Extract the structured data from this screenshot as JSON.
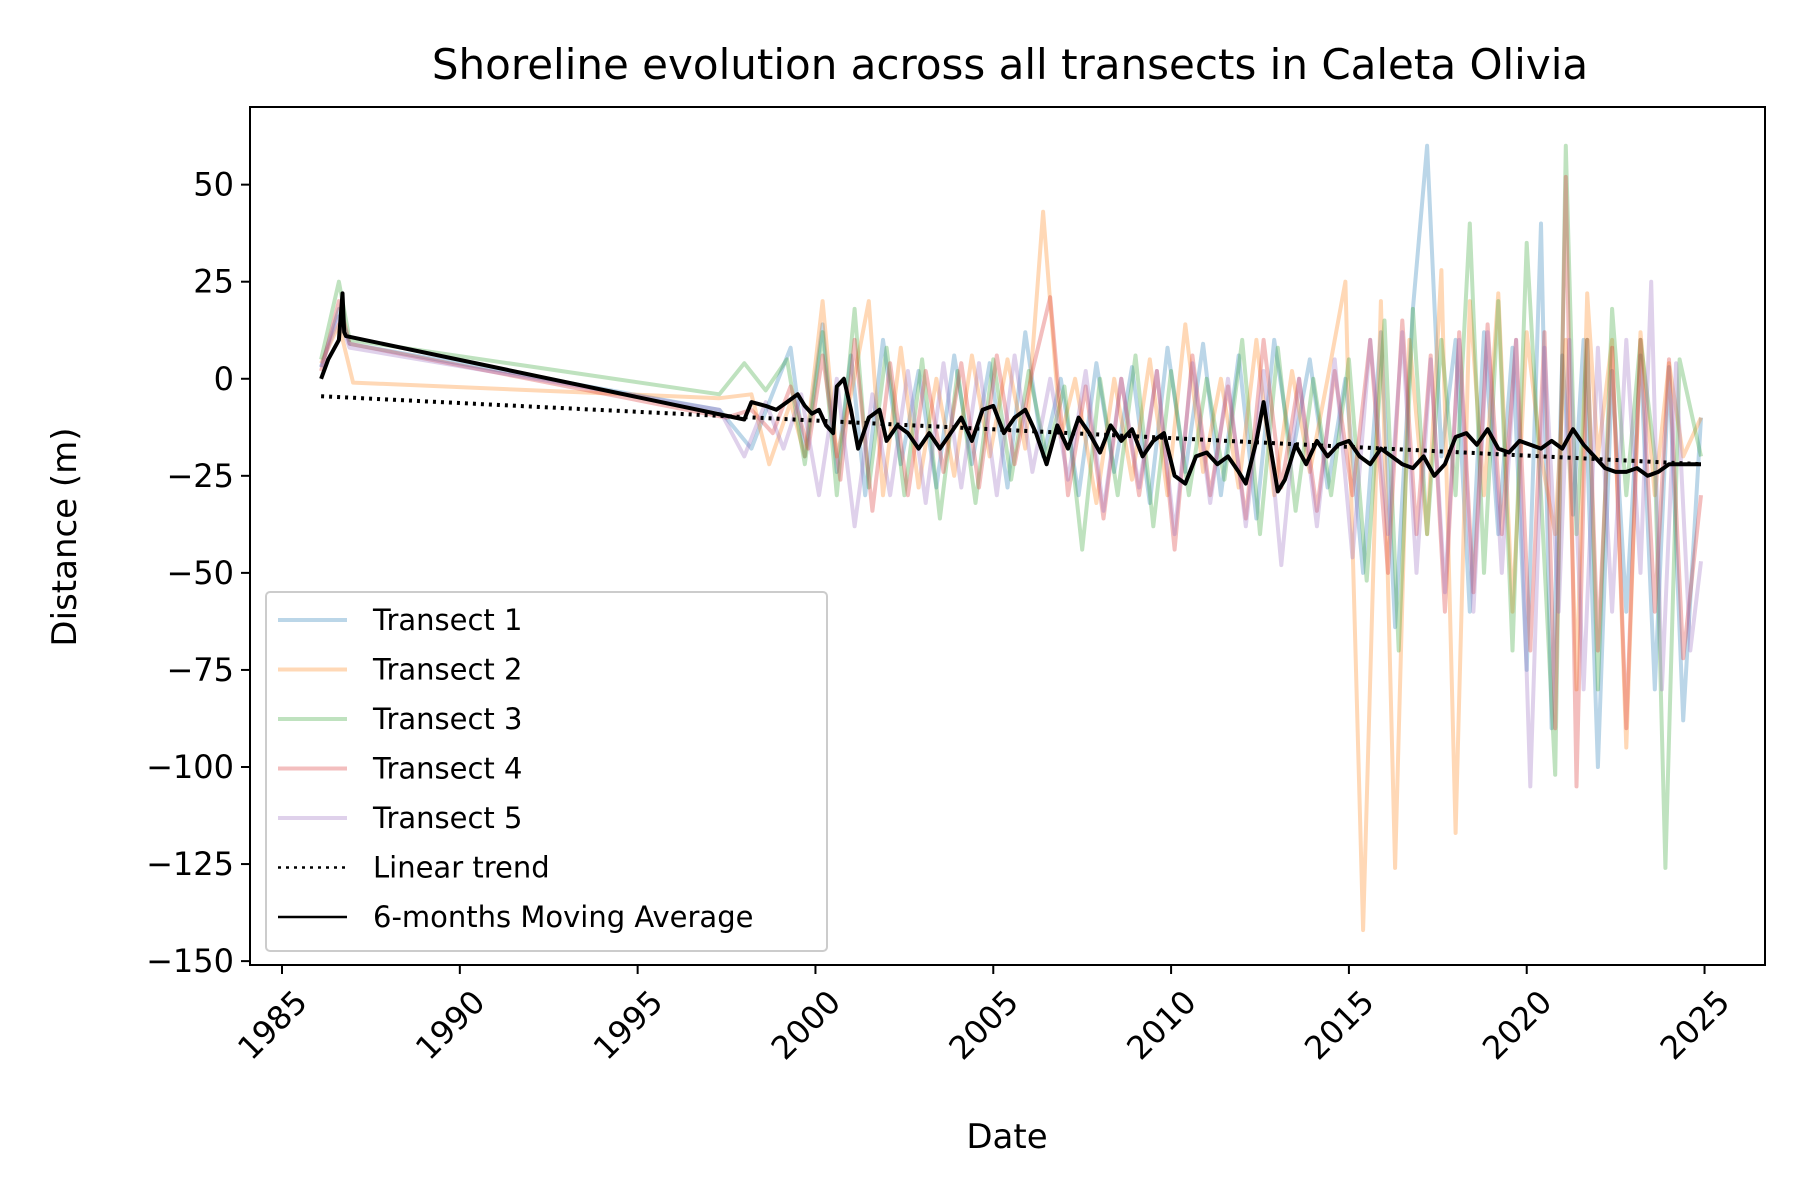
{
  "chart_data": {
    "type": "line",
    "title": "Shoreline evolution across all transects in Caleta Olivia",
    "xlabel": "Date",
    "ylabel": "Distance (m)",
    "xlim": [
      1984.1,
      2026.7
    ],
    "ylim": [
      -151,
      70
    ],
    "x_ticks": [
      1985,
      1990,
      1995,
      2000,
      2005,
      2010,
      2015,
      2020,
      2025
    ],
    "y_ticks": [
      50,
      25,
      0,
      -25,
      -50,
      -75,
      -100,
      -125,
      -150
    ],
    "y_tick_labels": [
      "50",
      "25",
      "0",
      "−25",
      "−50",
      "−75",
      "−100",
      "−125",
      "−150"
    ],
    "grid": false,
    "legend_position": "lower-left",
    "series": [
      {
        "name": "Transect 1",
        "color": "#1f77b4",
        "opacity": 0.3,
        "x": [
          1986.1,
          1986.6,
          1986.9,
          1997.3,
          1998.2,
          1998.7,
          1999.3,
          1999.7,
          2000.2,
          2000.6,
          2001.0,
          2001.4,
          2001.9,
          2002.4,
          2002.9,
          2003.4,
          2003.9,
          2004.4,
          2004.9,
          2005.4,
          2005.9,
          2006.4,
          2006.9,
          2007.4,
          2007.9,
          2008.4,
          2008.9,
          2009.4,
          2009.9,
          2010.4,
          2010.9,
          2011.4,
          2011.9,
          2012.4,
          2012.9,
          2013.4,
          2013.9,
          2014.4,
          2014.9,
          2015.4,
          2015.9,
          2016.3,
          2016.8,
          2017.2,
          2017.6,
          2018.0,
          2018.4,
          2018.8,
          2019.2,
          2019.6,
          2020.0,
          2020.4,
          2020.7,
          2021.0,
          2021.3,
          2021.6,
          2022.0,
          2022.4,
          2022.8,
          2023.2,
          2023.6,
          2024.0,
          2024.4,
          2024.9
        ],
        "y": [
          3,
          18,
          9,
          -8,
          -18,
          -6,
          8,
          -20,
          14,
          -24,
          6,
          -30,
          10,
          -22,
          2,
          -28,
          6,
          -22,
          4,
          -28,
          12,
          -20,
          0,
          -30,
          4,
          -24,
          3,
          -32,
          8,
          -24,
          9,
          -30,
          6,
          -36,
          10,
          -20,
          5,
          -28,
          0,
          -50,
          12,
          -64,
          18,
          60,
          -20,
          10,
          -60,
          12,
          -40,
          8,
          -75,
          40,
          -90,
          6,
          -35,
          10,
          -100,
          2,
          -60,
          6,
          -80,
          3,
          -88,
          -10
        ]
      },
      {
        "name": "Transect 2",
        "color": "#ff7f0e",
        "opacity": 0.3,
        "x": [
          1986.1,
          1986.6,
          1987.0,
          1997.3,
          1998.2,
          1998.7,
          1999.3,
          1999.7,
          2000.2,
          2000.6,
          2001.0,
          2001.5,
          2001.9,
          2002.4,
          2002.9,
          2003.4,
          2003.9,
          2004.4,
          2004.9,
          2005.4,
          2005.9,
          2006.4,
          2006.9,
          2007.3,
          2007.9,
          2008.4,
          2008.9,
          2009.4,
          2009.9,
          2010.4,
          2010.9,
          2011.4,
          2011.9,
          2012.4,
          2012.9,
          2013.4,
          2013.9,
          2014.4,
          2014.9,
          2015.4,
          2015.9,
          2016.3,
          2016.7,
          2017.2,
          2017.6,
          2018.0,
          2018.4,
          2018.8,
          2019.2,
          2019.6,
          2020.0,
          2020.4,
          2020.8,
          2021.1,
          2021.4,
          2021.7,
          2022.0,
          2022.4,
          2022.8,
          2023.2,
          2023.6,
          2024.0,
          2024.4,
          2024.9
        ],
        "y": [
          4,
          14,
          -1,
          -5,
          -4,
          -22,
          -6,
          -20,
          20,
          -20,
          -4,
          20,
          -30,
          8,
          -28,
          0,
          -25,
          6,
          -20,
          5,
          -18,
          43,
          -15,
          0,
          -32,
          0,
          -26,
          5,
          -30,
          14,
          -24,
          0,
          -28,
          10,
          -30,
          2,
          -24,
          0,
          25,
          -142,
          20,
          -126,
          10,
          -40,
          28,
          -117,
          20,
          -30,
          22,
          -60,
          12,
          -20,
          -40,
          10,
          -80,
          22,
          -20,
          10,
          -95,
          12,
          -30,
          4,
          -20,
          -10
        ]
      },
      {
        "name": "Transect 3",
        "color": "#2ca02c",
        "opacity": 0.3,
        "x": [
          1986.1,
          1986.6,
          1986.9,
          1997.3,
          1998.0,
          1998.6,
          1999.2,
          1999.7,
          2000.2,
          2000.6,
          2001.1,
          2001.5,
          2002.0,
          2002.5,
          2003.0,
          2003.5,
          2004.0,
          2004.5,
          2005.0,
          2005.5,
          2006.0,
          2006.5,
          2007.0,
          2007.5,
          2008.0,
          2008.5,
          2009.0,
          2009.5,
          2010.0,
          2010.5,
          2011.0,
          2011.5,
          2012.0,
          2012.5,
          2013.0,
          2013.5,
          2014.0,
          2014.5,
          2015.0,
          2015.5,
          2016.0,
          2016.4,
          2016.8,
          2017.2,
          2017.6,
          2018.0,
          2018.4,
          2018.8,
          2019.2,
          2019.6,
          2020.0,
          2020.4,
          2020.8,
          2021.1,
          2021.4,
          2021.7,
          2022.0,
          2022.4,
          2022.8,
          2023.2,
          2023.6,
          2023.9,
          2024.3,
          2024.9
        ],
        "y": [
          5,
          25,
          10,
          -4,
          4,
          -3,
          5,
          -22,
          12,
          -30,
          18,
          -28,
          8,
          -30,
          5,
          -36,
          2,
          -32,
          5,
          -26,
          2,
          -20,
          -2,
          -44,
          0,
          -30,
          6,
          -38,
          2,
          -30,
          0,
          -26,
          10,
          -40,
          8,
          -34,
          0,
          -30,
          5,
          -52,
          15,
          -70,
          18,
          -40,
          10,
          -30,
          40,
          -50,
          20,
          -70,
          35,
          -30,
          -102,
          60,
          -40,
          10,
          -80,
          18,
          -30,
          10,
          -20,
          -126,
          5,
          -20
        ]
      },
      {
        "name": "Transect 4",
        "color": "#d62728",
        "opacity": 0.3,
        "x": [
          1986.1,
          1986.6,
          1986.9,
          1997.5,
          1998.2,
          1998.8,
          1999.3,
          1999.8,
          2000.2,
          2000.7,
          2001.1,
          2001.6,
          2002.1,
          2002.6,
          2003.1,
          2003.6,
          2004.1,
          2004.6,
          2005.1,
          2005.6,
          2006.1,
          2006.6,
          2007.1,
          2007.6,
          2008.1,
          2008.6,
          2009.1,
          2009.6,
          2010.1,
          2010.6,
          2011.1,
          2011.6,
          2012.1,
          2012.6,
          2013.1,
          2013.6,
          2014.1,
          2014.6,
          2015.1,
          2015.6,
          2016.1,
          2016.5,
          2016.9,
          2017.3,
          2017.7,
          2018.1,
          2018.5,
          2018.9,
          2019.3,
          2019.7,
          2020.1,
          2020.5,
          2020.8,
          2021.1,
          2021.4,
          2021.7,
          2022.0,
          2022.4,
          2022.8,
          2023.2,
          2023.6,
          2024.0,
          2024.4,
          2024.9
        ],
        "y": [
          2,
          20,
          9,
          -10,
          -8,
          -14,
          -2,
          -18,
          6,
          -26,
          10,
          -34,
          4,
          -30,
          2,
          -24,
          4,
          -28,
          6,
          -22,
          2,
          21,
          -30,
          -2,
          -36,
          0,
          -30,
          2,
          -44,
          6,
          -30,
          -2,
          -36,
          10,
          -28,
          0,
          -34,
          2,
          -30,
          10,
          -50,
          15,
          -40,
          6,
          -60,
          12,
          -55,
          14,
          -40,
          10,
          -70,
          12,
          -90,
          52,
          -105,
          10,
          -70,
          8,
          -90,
          10,
          -60,
          5,
          -72,
          -30
        ]
      },
      {
        "name": "Transect 5",
        "color": "#9467bd",
        "opacity": 0.3,
        "x": [
          1986.1,
          1986.6,
          1986.9,
          1997.3,
          1998.0,
          1998.6,
          1999.1,
          1999.6,
          2000.1,
          2000.6,
          2001.1,
          2001.6,
          2002.1,
          2002.6,
          2003.1,
          2003.6,
          2004.1,
          2004.6,
          2005.1,
          2005.6,
          2006.1,
          2006.6,
          2007.1,
          2007.6,
          2008.1,
          2008.6,
          2009.1,
          2009.6,
          2010.1,
          2010.6,
          2011.1,
          2011.6,
          2012.1,
          2012.6,
          2013.1,
          2013.6,
          2014.1,
          2014.6,
          2015.1,
          2015.6,
          2016.1,
          2016.5,
          2016.9,
          2017.3,
          2017.7,
          2018.1,
          2018.5,
          2018.9,
          2019.3,
          2019.7,
          2020.1,
          2020.5,
          2020.9,
          2021.2,
          2021.6,
          2022.0,
          2022.4,
          2022.8,
          2023.2,
          2023.5,
          2023.8,
          2024.2,
          2024.6,
          2024.9
        ],
        "y": [
          3,
          16,
          8,
          -8,
          -20,
          -6,
          -18,
          -4,
          -30,
          0,
          -38,
          -4,
          -30,
          2,
          -32,
          4,
          -28,
          4,
          -30,
          6,
          -24,
          0,
          -26,
          2,
          -34,
          0,
          -28,
          2,
          -40,
          4,
          -32,
          0,
          -38,
          2,
          -48,
          0,
          -38,
          5,
          -46,
          10,
          -40,
          12,
          -50,
          5,
          -55,
          10,
          -60,
          12,
          -50,
          10,
          -105,
          8,
          -60,
          10,
          -80,
          8,
          -60,
          10,
          -50,
          25,
          -80,
          4,
          -70,
          -47
        ]
      },
      {
        "name": "Linear trend",
        "color": "#000000",
        "opacity": 1,
        "dash": "3 5",
        "x": [
          1986.1,
          2024.9
        ],
        "y": [
          -4.5,
          -22
        ]
      },
      {
        "name": "6-months Moving Average",
        "color": "#000000",
        "opacity": 1,
        "x": [
          1986.1,
          1986.3,
          1986.6,
          1986.7,
          1986.75,
          1986.8,
          1998.0,
          1998.2,
          1998.6,
          1998.9,
          1999.2,
          1999.5,
          1999.7,
          1999.9,
          2000.1,
          2000.3,
          2000.5,
          2000.6,
          2000.8,
          2001.0,
          2001.2,
          2001.5,
          2001.8,
          2002.0,
          2002.3,
          2002.6,
          2002.9,
          2003.2,
          2003.5,
          2003.8,
          2004.1,
          2004.4,
          2004.7,
          2005.0,
          2005.3,
          2005.6,
          2005.9,
          2006.2,
          2006.5,
          2006.8,
          2007.1,
          2007.4,
          2007.7,
          2008.0,
          2008.3,
          2008.6,
          2008.9,
          2009.2,
          2009.5,
          2009.8,
          2010.1,
          2010.4,
          2010.7,
          2011.0,
          2011.3,
          2011.6,
          2011.9,
          2012.1,
          2012.4,
          2012.6,
          2012.8,
          2013.0,
          2013.2,
          2013.5,
          2013.8,
          2014.1,
          2014.4,
          2014.7,
          2015.0,
          2015.3,
          2015.6,
          2015.9,
          2016.2,
          2016.5,
          2016.8,
          2017.1,
          2017.4,
          2017.7,
          2018.0,
          2018.3,
          2018.6,
          2018.9,
          2019.2,
          2019.5,
          2019.8,
          2020.1,
          2020.4,
          2020.7,
          2021.0,
          2021.3,
          2021.6,
          2021.9,
          2022.2,
          2022.5,
          2022.8,
          2023.1,
          2023.4,
          2023.7,
          2024.0,
          2024.3,
          2024.6,
          2024.9
        ],
        "y": [
          0,
          5,
          10,
          22,
          12,
          11,
          -10.5,
          -6,
          -7,
          -8,
          -6,
          -4,
          -7,
          -9,
          -8,
          -12,
          -14,
          -2,
          0,
          -8,
          -18,
          -10,
          -8,
          -16,
          -12,
          -14,
          -18,
          -14,
          -18,
          -14,
          -10,
          -16,
          -8,
          -7,
          -14,
          -10,
          -8,
          -14,
          -22,
          -12,
          -18,
          -10,
          -14,
          -19,
          -12,
          -16,
          -13,
          -20,
          -16,
          -14,
          -25,
          -27,
          -20,
          -19,
          -22,
          -20,
          -24,
          -27,
          -16,
          -6,
          -18,
          -29,
          -26,
          -17,
          -22,
          -16,
          -20,
          -17,
          -16,
          -20,
          -22,
          -18,
          -20,
          -22,
          -23,
          -20,
          -25,
          -22,
          -15,
          -14,
          -17,
          -13,
          -18,
          -19,
          -16,
          -17,
          -18,
          -16,
          -18,
          -13,
          -17,
          -20,
          -23,
          -24,
          -24,
          -23,
          -25,
          -24,
          -22,
          -22,
          -22,
          -22
        ]
      }
    ]
  }
}
